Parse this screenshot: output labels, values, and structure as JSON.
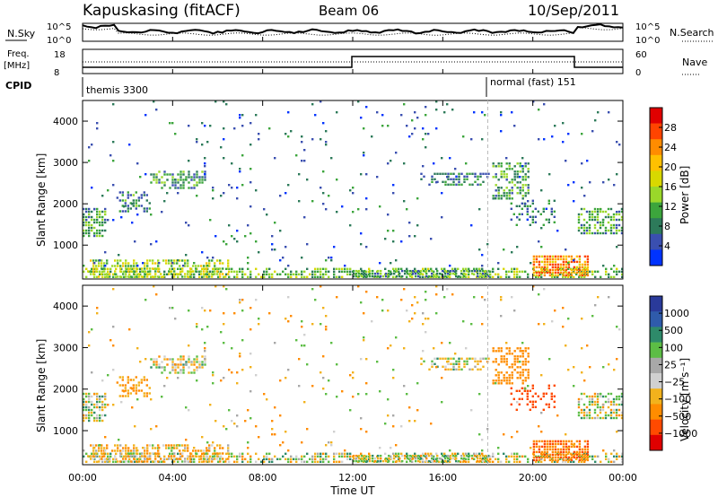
{
  "header": {
    "station": "Kapuskasing (fitACF)",
    "beam": "Beam 06",
    "date": "10/Sep/2011"
  },
  "panels": {
    "nsky_label": "N.Sky",
    "nsearch_label": "N.Search",
    "noise_ticks": [
      "10^5",
      "10^0"
    ],
    "freq_label": "Freq.",
    "freq_unit": "[MHz]",
    "freq_ticks": [
      "18",
      "8"
    ],
    "nave_label": "Nave",
    "nave_ticks": [
      "60",
      "0"
    ],
    "cpid_label": "CPID",
    "cpid_modes": [
      "themis 3300",
      "normal (fast) 151"
    ]
  },
  "colorbars": {
    "power": {
      "title": "Power [dB]",
      "ticks": [
        "28",
        "24",
        "20",
        "16",
        "12",
        "8",
        "4"
      ],
      "colors": [
        "#e00000",
        "#ff4400",
        "#ff8c00",
        "#ffc000",
        "#d8d800",
        "#9ad82a",
        "#3ca53c",
        "#2d7a5a",
        "#3a4fb0",
        "#0033ff"
      ]
    },
    "velocity": {
      "title": "Velocity  [m s⁻¹]",
      "ticks": [
        "1000",
        "500",
        "100",
        "25",
        "−25",
        "−100",
        "−500",
        "−1000"
      ],
      "colors": [
        "#2a3a9a",
        "#2f5bab",
        "#2e8a6a",
        "#5cbd45",
        "#a8a8a8",
        "#d0d0d0",
        "#f2b21c",
        "#ff8c00",
        "#ff4a00",
        "#e00000"
      ]
    }
  },
  "chart_data": {
    "type": "heatmap",
    "xlabel": "Time UT",
    "ylabel": "Slant Range [km]",
    "x_ticks": [
      "00:00",
      "04:00",
      "08:00",
      "12:00",
      "16:00",
      "20:00",
      "00:00"
    ],
    "y_ticks": [
      "1000",
      "2000",
      "3000",
      "4000"
    ],
    "x_range_hours": [
      0,
      24
    ],
    "y_range_km": [
      180,
      4500
    ],
    "mode_change_hour": 18.0,
    "power_scale_db": [
      0,
      30
    ],
    "velocity_scale": [
      -1000,
      1000
    ],
    "scatter_regions": [
      {
        "t0": 0.0,
        "t1": 24.0,
        "r0": 200,
        "r1": 450,
        "density": 0.55,
        "power": 12,
        "vel": 10
      },
      {
        "t0": 0.2,
        "t1": 6.5,
        "r0": 220,
        "r1": 650,
        "density": 0.55,
        "power": 14,
        "vel": -90
      },
      {
        "t0": 0.0,
        "t1": 1.0,
        "r0": 1200,
        "r1": 1900,
        "density": 0.7,
        "power": 10,
        "vel": 5
      },
      {
        "t0": 3.0,
        "t1": 5.5,
        "r0": 2400,
        "r1": 2800,
        "density": 0.55,
        "power": 9,
        "vel": -10
      },
      {
        "t0": 1.5,
        "t1": 3.0,
        "r0": 1800,
        "r1": 2300,
        "density": 0.35,
        "power": 8,
        "vel": -150
      },
      {
        "t0": 18.2,
        "t1": 19.8,
        "r0": 2100,
        "r1": 3000,
        "density": 0.55,
        "power": 10,
        "vel": -300
      },
      {
        "t0": 15.0,
        "t1": 18.0,
        "r0": 2450,
        "r1": 2750,
        "density": 0.45,
        "power": 7,
        "vel": 5
      },
      {
        "t0": 20.0,
        "t1": 22.5,
        "r0": 250,
        "r1": 750,
        "density": 0.85,
        "power": 22,
        "vel": -450
      },
      {
        "t0": 22.0,
        "t1": 24.0,
        "r0": 1300,
        "r1": 1900,
        "density": 0.55,
        "power": 10,
        "vel": 5
      },
      {
        "t0": 19.0,
        "t1": 21.0,
        "r0": 1500,
        "r1": 2100,
        "density": 0.3,
        "power": 7,
        "vel": -700
      },
      {
        "t0": 12.0,
        "t1": 18.0,
        "r0": 220,
        "r1": 400,
        "density": 0.7,
        "power": 9,
        "vel": 5
      },
      {
        "t0": 0.0,
        "t1": 24.0,
        "r0": 500,
        "r1": 4500,
        "density": 0.025,
        "power": 6,
        "vel": -40
      }
    ]
  }
}
